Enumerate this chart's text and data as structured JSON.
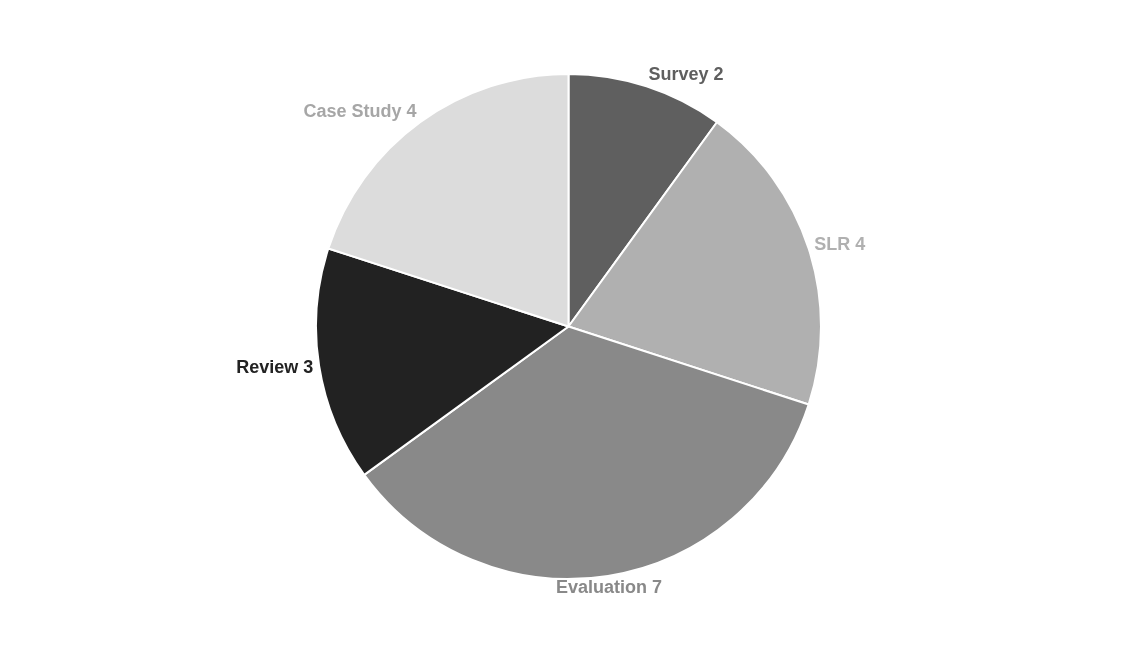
{
  "chart_data": {
    "type": "pie",
    "categories": [
      "Survey",
      "SLR",
      "Evaluation",
      "Review",
      "Case Study"
    ],
    "values": [
      2,
      4,
      7,
      3,
      4
    ],
    "colors": [
      "#5f5f5f",
      "#b0b0b0",
      "#898989",
      "#222222",
      "#dcdcdc"
    ],
    "data_labels": true,
    "legend": false
  }
}
